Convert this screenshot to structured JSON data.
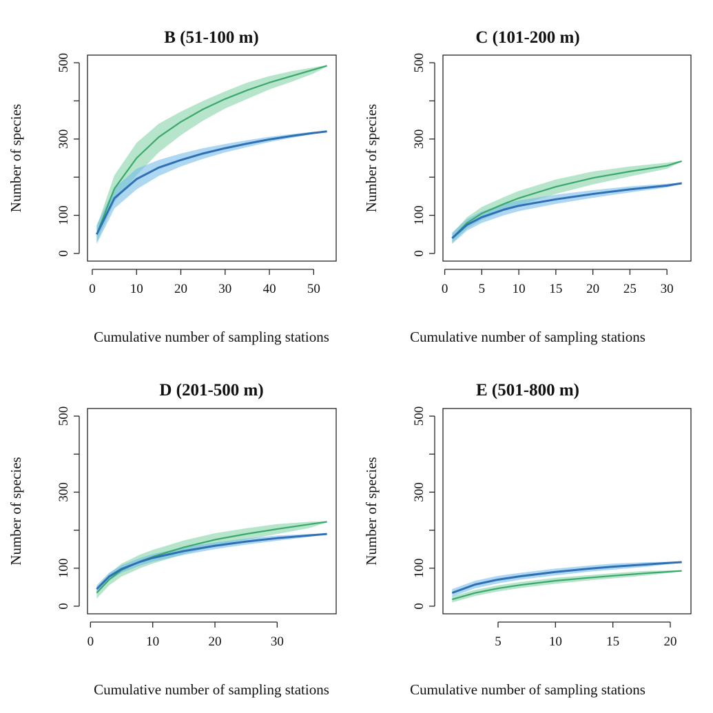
{
  "colors": {
    "green": "#3aa86b",
    "green_band": "#7ccfa0",
    "blue": "#2f6fb6",
    "blue_band": "#6cb8e8",
    "axis": "#222222"
  },
  "chart_data": [
    {
      "type": "line",
      "title": "B (51-100 m)",
      "xlabel": "Cumulative number of sampling stations",
      "ylabel": "Number of species",
      "xlim": [
        1,
        53
      ],
      "ylim": [
        0,
        500
      ],
      "xticks": [
        0,
        10,
        20,
        30,
        40,
        50
      ],
      "yticks": [
        0,
        100,
        200,
        300,
        400,
        500
      ],
      "yticklabels": [
        "0",
        "100",
        "",
        "300",
        "",
        "500"
      ],
      "series": [
        {
          "name": "green",
          "x": [
            1,
            5,
            10,
            15,
            20,
            25,
            30,
            35,
            40,
            45,
            50,
            53
          ],
          "y": [
            50,
            170,
            250,
            305,
            345,
            378,
            405,
            428,
            448,
            465,
            482,
            492
          ],
          "lower": [
            30,
            135,
            205,
            265,
            310,
            348,
            380,
            405,
            430,
            450,
            472,
            490
          ],
          "upper": [
            70,
            205,
            290,
            340,
            372,
            400,
            425,
            448,
            465,
            478,
            488,
            494
          ]
        },
        {
          "name": "blue",
          "x": [
            1,
            5,
            10,
            15,
            20,
            25,
            30,
            35,
            40,
            45,
            50,
            53
          ],
          "y": [
            50,
            145,
            195,
            225,
            245,
            262,
            276,
            288,
            299,
            308,
            316,
            320
          ],
          "lower": [
            25,
            118,
            168,
            203,
            228,
            248,
            265,
            279,
            292,
            303,
            313,
            319
          ],
          "upper": [
            75,
            172,
            222,
            245,
            262,
            276,
            287,
            297,
            306,
            313,
            319,
            321
          ]
        }
      ]
    },
    {
      "type": "line",
      "title": "C (101-200 m)",
      "xlabel": "Cumulative number of sampling stations",
      "ylabel": "Number of species",
      "xlim": [
        1,
        32
      ],
      "ylim": [
        0,
        500
      ],
      "xticks": [
        0,
        5,
        10,
        15,
        20,
        25,
        30
      ],
      "yticks": [
        0,
        100,
        200,
        300,
        400,
        500
      ],
      "yticklabels": [
        "0",
        "100",
        "",
        "300",
        "",
        "500"
      ],
      "series": [
        {
          "name": "green",
          "x": [
            1,
            3,
            5,
            8,
            10,
            15,
            20,
            25,
            30,
            32
          ],
          "y": [
            40,
            80,
            105,
            130,
            145,
            175,
            198,
            215,
            230,
            242
          ],
          "lower": [
            28,
            65,
            88,
            112,
            126,
            156,
            181,
            202,
            222,
            241
          ],
          "upper": [
            52,
            95,
            122,
            148,
            164,
            194,
            215,
            228,
            238,
            243
          ]
        },
        {
          "name": "blue",
          "x": [
            1,
            3,
            5,
            8,
            10,
            15,
            20,
            25,
            30,
            32
          ],
          "y": [
            40,
            75,
            95,
            115,
            125,
            142,
            156,
            168,
            178,
            184
          ],
          "lower": [
            25,
            60,
            80,
            100,
            111,
            130,
            146,
            160,
            173,
            183
          ],
          "upper": [
            55,
            90,
            110,
            130,
            139,
            154,
            166,
            176,
            183,
            185
          ]
        }
      ]
    },
    {
      "type": "line",
      "title": "D (201-500 m)",
      "xlabel": "Cumulative number of sampling stations",
      "ylabel": "Number of species",
      "xlim": [
        1,
        38
      ],
      "ylim": [
        0,
        500
      ],
      "xticks": [
        0,
        10,
        20,
        30
      ],
      "yticks": [
        0,
        100,
        200,
        300,
        400,
        500
      ],
      "yticklabels": [
        "0",
        "100",
        "",
        "300",
        "",
        "500"
      ],
      "series": [
        {
          "name": "green",
          "x": [
            1,
            3,
            5,
            8,
            10,
            15,
            20,
            25,
            30,
            35,
            38
          ],
          "y": [
            35,
            70,
            95,
            118,
            130,
            155,
            175,
            190,
            203,
            215,
            222
          ],
          "lower": [
            20,
            55,
            78,
            100,
            112,
            137,
            158,
            175,
            190,
            205,
            220
          ],
          "upper": [
            50,
            85,
            112,
            136,
            148,
            173,
            192,
            205,
            216,
            222,
            224
          ]
        },
        {
          "name": "blue",
          "x": [
            1,
            3,
            5,
            8,
            10,
            15,
            20,
            25,
            30,
            35,
            38
          ],
          "y": [
            45,
            78,
            98,
            117,
            127,
            145,
            159,
            170,
            179,
            186,
            190
          ],
          "lower": [
            35,
            68,
            88,
            107,
            117,
            135,
            150,
            162,
            172,
            182,
            189
          ],
          "upper": [
            55,
            88,
            108,
            127,
            137,
            155,
            168,
            178,
            186,
            190,
            191
          ]
        }
      ]
    },
    {
      "type": "line",
      "title": "E (501-800 m)",
      "xlabel": "Cumulative number of sampling stations",
      "ylabel": "Number of species",
      "xlim": [
        1,
        21
      ],
      "ylim": [
        0,
        500
      ],
      "xticks": [
        5,
        10,
        15,
        20
      ],
      "yticks": [
        0,
        100,
        200,
        300,
        400,
        500
      ],
      "yticklabels": [
        "0",
        "100",
        "",
        "300",
        "",
        "500"
      ],
      "series": [
        {
          "name": "green",
          "x": [
            1,
            3,
            5,
            7,
            10,
            13,
            15,
            18,
            20,
            21
          ],
          "y": [
            18,
            35,
            47,
            56,
            67,
            75,
            80,
            87,
            91,
            93
          ],
          "lower": [
            10,
            27,
            39,
            48,
            59,
            68,
            73,
            81,
            88,
            92
          ],
          "upper": [
            26,
            43,
            55,
            64,
            75,
            82,
            87,
            93,
            94,
            94
          ]
        },
        {
          "name": "blue",
          "x": [
            1,
            3,
            5,
            7,
            10,
            13,
            15,
            18,
            20,
            21
          ],
          "y": [
            35,
            57,
            70,
            79,
            90,
            99,
            104,
            110,
            114,
            116
          ],
          "lower": [
            25,
            47,
            60,
            70,
            81,
            91,
            96,
            104,
            111,
            115
          ],
          "upper": [
            45,
            67,
            80,
            88,
            99,
            107,
            112,
            116,
            117,
            117
          ]
        }
      ]
    }
  ]
}
